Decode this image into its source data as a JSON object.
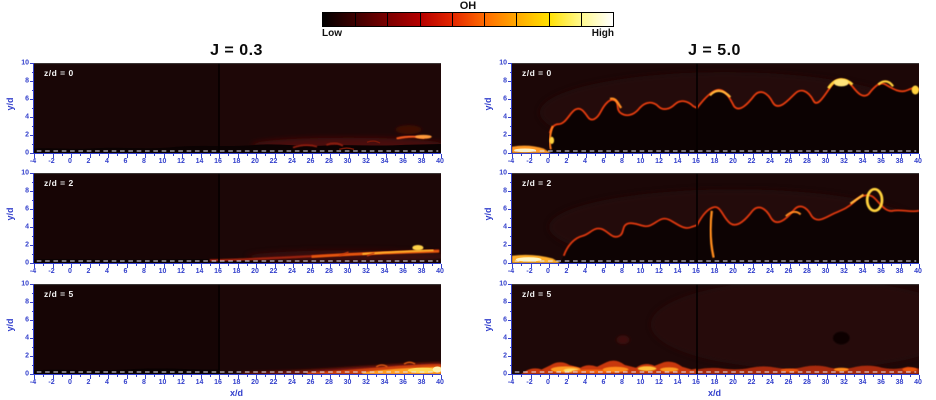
{
  "figure": {
    "colorbar": {
      "title": "OH",
      "low_label": "Low",
      "high_label": "High",
      "colors": [
        "#020000",
        "#3d0000",
        "#7a0000",
        "#b40000",
        "#e32500",
        "#ff6a00",
        "#ffa800",
        "#ffe000",
        "#fff98c",
        "#ffffff"
      ],
      "divider_count": 8
    },
    "columns": [
      {
        "title": "J = 0.3"
      },
      {
        "title": "J = 5.0"
      }
    ],
    "rows": [
      {
        "label": "z/d = 0"
      },
      {
        "label": "z/d = 2"
      },
      {
        "label": "z/d = 5"
      }
    ],
    "axes": {
      "x_label": "x/d",
      "y_label": "y/d",
      "x_ticks": [
        "-4",
        "-2",
        "0",
        "2",
        "4",
        "6",
        "8",
        "10",
        "12",
        "14",
        "16",
        "18",
        "20",
        "22",
        "24",
        "26",
        "28",
        "30",
        "32",
        "34",
        "36",
        "38",
        "40"
      ],
      "y_ticks": [
        "0",
        "2",
        "4",
        "6",
        "8",
        "10"
      ],
      "x_range": [
        -4,
        40
      ],
      "y_range": [
        0,
        10
      ],
      "tick_color": "#3340cc"
    }
  },
  "chart_data": [
    {
      "type": "heatmap",
      "panel": "row1-col1",
      "title": "J = 0.3, z/d = 0",
      "xlabel": "x/d",
      "ylabel": "y/d",
      "xlim": [
        -4,
        40
      ],
      "ylim": [
        0,
        10
      ],
      "colormap": "hot (black-red-orange-yellow-white)",
      "legend": "OH signal, Low to High",
      "features": "Very weak OH overall; dark near-wall silhouettes y/d<2; faint red filaments for x/d>26 near y/d 1-2; brightest orange streak near x/d 36-39 at y/d about 2; vertical image seam at x/d 16"
    },
    {
      "type": "heatmap",
      "panel": "row1-col2",
      "title": "J = 5.0, z/d = 0",
      "xlabel": "x/d",
      "ylabel": "y/d",
      "xlim": [
        -4,
        40
      ],
      "ylim": [
        0,
        10
      ],
      "colormap": "hot (black-red-orange-yellow-white)",
      "legend": "OH signal, Low to High",
      "features": "Strong OH; bright strip at wall for x/d<0, flame lifts near x/d 0; wrinkled thin flame fronts outline dark pockets up to y/d about 8; bright yellow-white spots near x/d 33 and 38 at y/d 7-8; intense yellow-white OH along wall y/d<2 across full width"
    },
    {
      "type": "heatmap",
      "panel": "row2-col1",
      "title": "J = 0.3, z/d = 2",
      "xlabel": "x/d",
      "ylabel": "y/d",
      "xlim": [
        -4,
        40
      ],
      "ylim": [
        0,
        10
      ],
      "colormap": "hot (black-red-orange-yellow-white)",
      "legend": "OH signal, Low to High",
      "features": "Weak OH; thin near-wall OH layer appears near x/d 20 and grows downstream, brightening to orange-yellow by x/d 34-40 at y/d about 1"
    },
    {
      "type": "heatmap",
      "panel": "row2-col2",
      "title": "J = 5.0, z/d = 2",
      "xlabel": "x/d",
      "ylabel": "y/d",
      "xlim": [
        -4,
        40
      ],
      "ylim": [
        0,
        10
      ],
      "colormap": "hot (black-red-orange-yellow-white)",
      "legend": "OH signal, Low to High",
      "features": "Strong OH; bright wall strip for x/d<0; turbulent flame brush up to y/d 6-7; bright vertical front near x/d 18; bright yellow loop near x/d 38 at y/d 6-8; intense near-wall OH clusters for x/d 16-20 and x/d>30"
    },
    {
      "type": "heatmap",
      "panel": "row3-col1",
      "title": "J = 0.3, z/d = 5",
      "xlabel": "x/d",
      "ylabel": "y/d",
      "xlim": [
        -4,
        40
      ],
      "ylim": [
        0,
        10
      ],
      "colormap": "hot (black-red-orange-yellow-white)",
      "legend": "OH signal, Low to High",
      "features": "Weak OH; near-wall OH wedge starting near x/d 24, thickening and brightening downstream to yellow-white at x/d 36-40, y/d<1.5"
    },
    {
      "type": "heatmap",
      "panel": "row3-col2",
      "title": "J = 5.0, z/d = 5",
      "xlabel": "x/d",
      "ylabel": "y/d",
      "xlim": [
        -4,
        40
      ],
      "ylim": [
        0,
        10
      ],
      "colormap": "hot (black-red-orange-yellow-white)",
      "legend": "OH signal, Low to High",
      "features": "Moderate OH; continuous bumpy near-wall OH band along entire length, brightest yellow-orange for 0<x/d<16 (y/d<2), dimmer red for x/d>16; dark void near x/d 35, y/d 4"
    }
  ]
}
